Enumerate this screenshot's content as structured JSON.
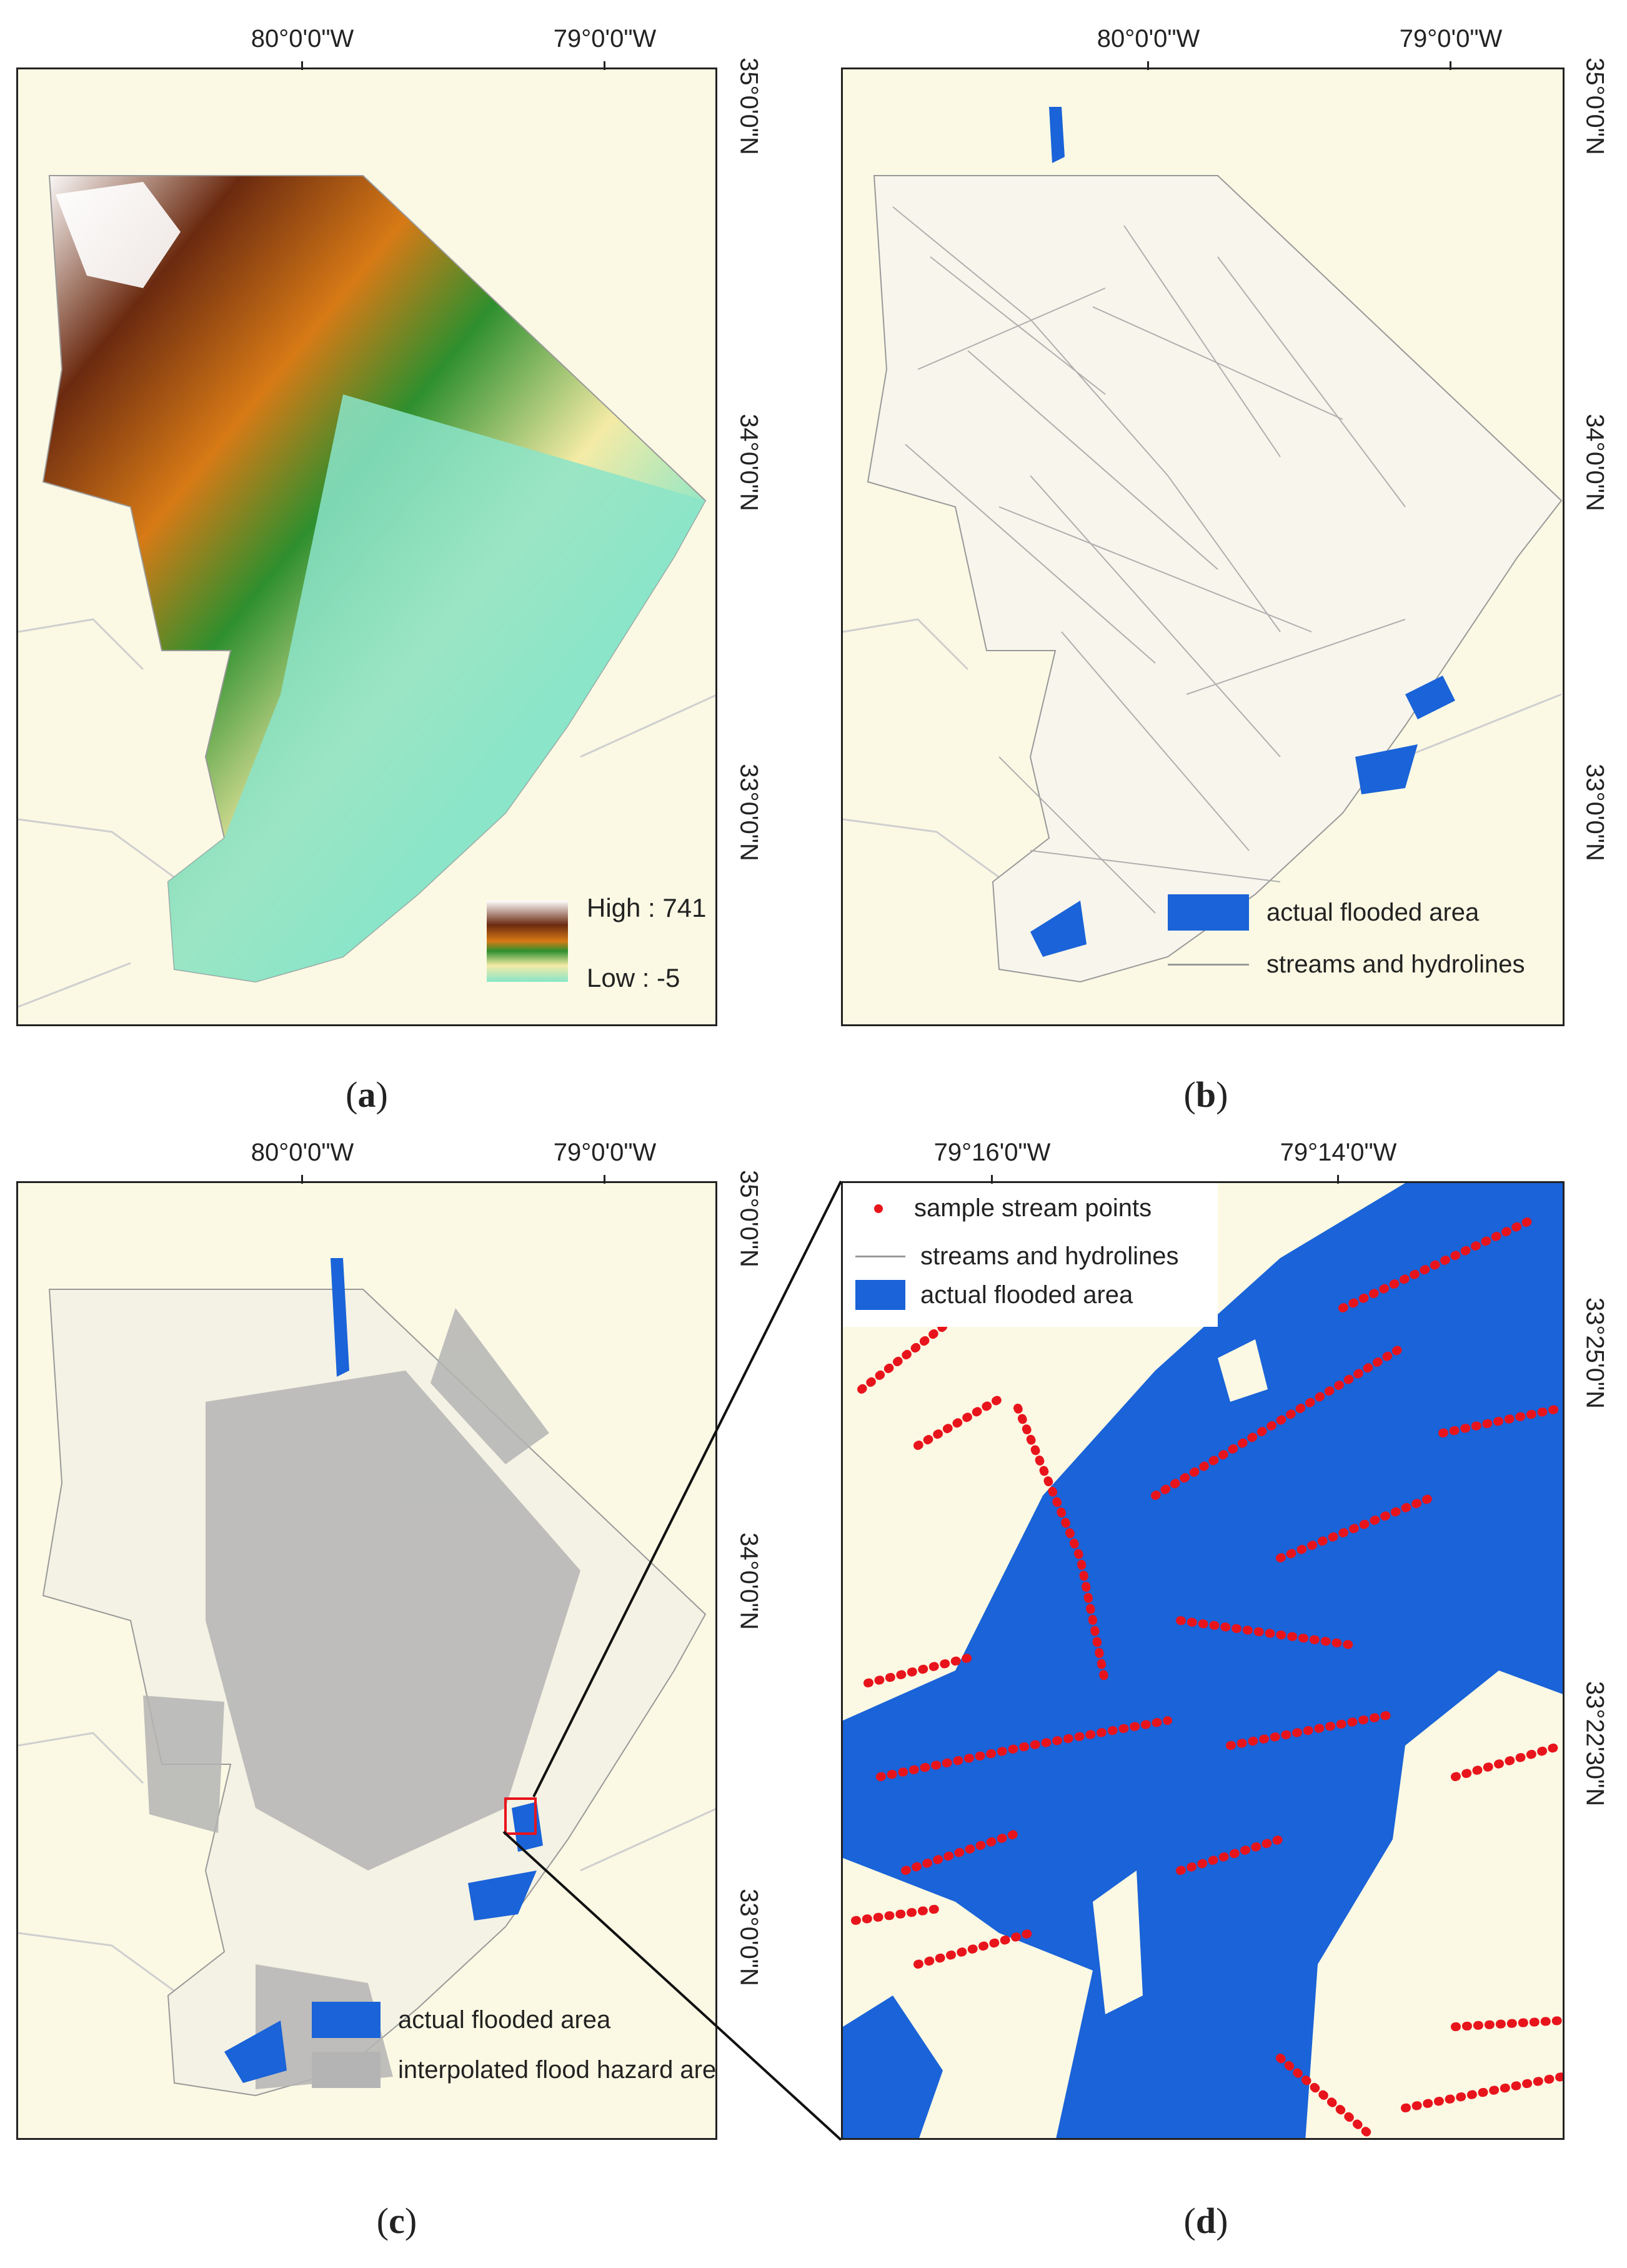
{
  "panels": {
    "a": {
      "caption": "a",
      "lon_labels": [
        "80°0'0\"W",
        "79°0'0\"W"
      ],
      "lat_labels": [
        "35°0'0\"N",
        "34°0'0\"N",
        "33°0'0\"N"
      ],
      "legend": {
        "high_label": "High : 741",
        "low_label": "Low : -5"
      },
      "elevation_range": [
        -5,
        741
      ],
      "colors": [
        "#ffffff",
        "#6b2a10",
        "#d77a16",
        "#2e8f2e",
        "#f4eba6",
        "#88e6c8"
      ]
    },
    "b": {
      "caption": "b",
      "lon_labels": [
        "80°0'0\"W",
        "79°0'0\"W"
      ],
      "lat_labels": [
        "35°0'0\"N",
        "34°0'0\"N",
        "33°0'0\"N"
      ],
      "legend": [
        {
          "label": "actual flooded area",
          "color": "#1a63d8",
          "kind": "fill"
        },
        {
          "label": "streams and hydrolines",
          "color": "#9a9a9a",
          "kind": "line"
        }
      ]
    },
    "c": {
      "caption": "c",
      "lon_labels": [
        "80°0'0\"W",
        "79°0'0\"W"
      ],
      "lat_labels": [
        "35°0'0\"N",
        "34°0'0\"N",
        "33°0'0\"N"
      ],
      "legend": [
        {
          "label": "actual flooded area",
          "color": "#1a63d8",
          "kind": "fill"
        },
        {
          "label": "interpolated flood hazard areas",
          "color": "#b4b4b4",
          "kind": "fill"
        }
      ]
    },
    "d": {
      "caption": "d",
      "lon_labels": [
        "79°16'0\"W",
        "79°14'0\"W"
      ],
      "lat_labels": [
        "33°25'0\"N",
        "33°22'30\"N"
      ],
      "legend": [
        {
          "label": "sample stream points",
          "color": "#e8141c",
          "kind": "dot"
        },
        {
          "label": "streams and hydrolines",
          "color": "#9a9a9a",
          "kind": "line"
        },
        {
          "label": "actual flooded area",
          "color": "#1a63d8",
          "kind": "fill"
        }
      ]
    }
  }
}
